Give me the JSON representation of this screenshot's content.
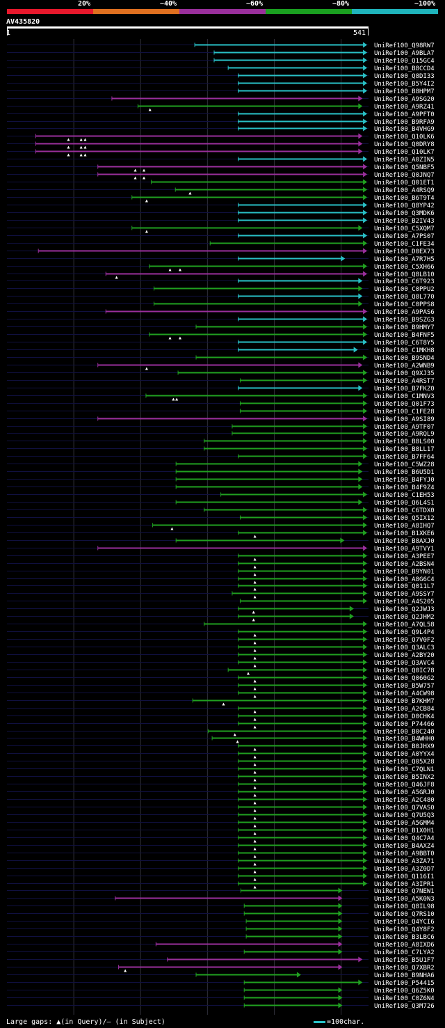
{
  "legend": [
    {
      "label": "20%",
      "color": "#e8182c"
    },
    {
      "label": "~40%",
      "color": "#e07020"
    },
    {
      "label": "~60%",
      "color": "#9a2f9c"
    },
    {
      "label": "~80%",
      "color": "#1aa020"
    },
    {
      "label": "~100%",
      "color": "#1fb4bc"
    }
  ],
  "query": {
    "id": "AV435820",
    "start": "1",
    "end": "541"
  },
  "footer": {
    "gaps_text": "Large gaps: ▲(in Query)/– (in Subject)",
    "scale_text": "=100char."
  },
  "chart_data": {
    "type": "alignment",
    "query_length": 541,
    "hits": [
      {
        "name": "UniRef100_Q98RW7",
        "start": 282,
        "end": 540,
        "identity": "high"
      },
      {
        "name": "UniRef100_A9BLA7",
        "start": 311,
        "end": 540,
        "identity": "high"
      },
      {
        "name": "UniRef100_Q15GC4",
        "start": 311,
        "end": 540,
        "identity": "high"
      },
      {
        "name": "UniRef100_B8CCD4",
        "start": 332,
        "end": 540,
        "identity": "high"
      },
      {
        "name": "UniRef100_Q8DI33",
        "start": 347,
        "end": 540,
        "identity": "high"
      },
      {
        "name": "UniRef100_B5Y4I2",
        "start": 347,
        "end": 540,
        "identity": "high"
      },
      {
        "name": "UniRef100_B8HPM7",
        "start": 347,
        "end": 540,
        "identity": "high"
      },
      {
        "name": "UniRef100_A9SG20",
        "start": 158,
        "end": 533,
        "identity": "mid"
      },
      {
        "name": "UniRef100_A9RZ41",
        "start": 197,
        "end": 533,
        "identity": "good",
        "gaps": [
          215
        ]
      },
      {
        "name": "UniRef100_A9PFT0",
        "start": 347,
        "end": 540,
        "identity": "high"
      },
      {
        "name": "UniRef100_B9RFA9",
        "start": 347,
        "end": 540,
        "identity": "high"
      },
      {
        "name": "UniRef100_B4VHG9",
        "start": 347,
        "end": 540,
        "identity": "high"
      },
      {
        "name": "UniRef100_Q10LK6",
        "start": 44,
        "end": 533,
        "identity": "mid",
        "gaps": [
          93,
          112,
          118
        ]
      },
      {
        "name": "UniRef100_Q0DRY8",
        "start": 44,
        "end": 533,
        "identity": "mid",
        "gaps": [
          93,
          112,
          118
        ]
      },
      {
        "name": "UniRef100_Q10LK7",
        "start": 44,
        "end": 533,
        "identity": "mid",
        "gaps": [
          93,
          112,
          118
        ]
      },
      {
        "name": "UniRef100_A0ZIN5",
        "start": 347,
        "end": 540,
        "identity": "high"
      },
      {
        "name": "UniRef100_Q5NBF5",
        "start": 137,
        "end": 540,
        "identity": "mid",
        "gaps": [
          193,
          206
        ]
      },
      {
        "name": "UniRef100_Q0JNQ7",
        "start": 137,
        "end": 540,
        "identity": "mid",
        "gaps": [
          193,
          206
        ]
      },
      {
        "name": "UniRef100_Q01ET1",
        "start": 217,
        "end": 540,
        "identity": "good"
      },
      {
        "name": "UniRef100_A4RSQ9",
        "start": 253,
        "end": 540,
        "identity": "good",
        "gaps": [
          275
        ]
      },
      {
        "name": "UniRef100_B6T9T4",
        "start": 188,
        "end": 540,
        "identity": "good",
        "gaps": [
          210
        ]
      },
      {
        "name": "UniRef100_Q8YP42",
        "start": 347,
        "end": 540,
        "identity": "high"
      },
      {
        "name": "UniRef100_Q3MDK6",
        "start": 347,
        "end": 540,
        "identity": "high"
      },
      {
        "name": "UniRef100_B2IV43",
        "start": 347,
        "end": 540,
        "identity": "high"
      },
      {
        "name": "UniRef100_C5XQM7",
        "start": 188,
        "end": 533,
        "identity": "good",
        "gaps": [
          210
        ]
      },
      {
        "name": "UniRef100_A7PS07",
        "start": 347,
        "end": 540,
        "identity": "high"
      },
      {
        "name": "UniRef100_C1FE34",
        "start": 305,
        "end": 540,
        "identity": "good"
      },
      {
        "name": "UniRef100_D0EX73",
        "start": 48,
        "end": 540,
        "identity": "mid"
      },
      {
        "name": "UniRef100_A7R7H5",
        "start": 347,
        "end": 507,
        "identity": "high"
      },
      {
        "name": "UniRef100_C5XH66",
        "start": 214,
        "end": 540,
        "identity": "good",
        "gaps": [
          245,
          260
        ]
      },
      {
        "name": "UniRef100_Q8LB10",
        "start": 149,
        "end": 540,
        "identity": "mid",
        "gaps": [
          165
        ]
      },
      {
        "name": "UniRef100_C6T923",
        "start": 347,
        "end": 533,
        "identity": "high"
      },
      {
        "name": "UniRef100_C0PPU2",
        "start": 221,
        "end": 533,
        "identity": "good"
      },
      {
        "name": "UniRef100_Q8L770",
        "start": 347,
        "end": 533,
        "identity": "high"
      },
      {
        "name": "UniRef100_C0PPS8",
        "start": 221,
        "end": 533,
        "identity": "good"
      },
      {
        "name": "UniRef100_A9PAS6",
        "start": 149,
        "end": 540,
        "identity": "mid"
      },
      {
        "name": "UniRef100_B9SZG3",
        "start": 347,
        "end": 540,
        "identity": "high"
      },
      {
        "name": "UniRef100_B9HMY7",
        "start": 284,
        "end": 540,
        "identity": "good"
      },
      {
        "name": "UniRef100_B4FNF5",
        "start": 214,
        "end": 540,
        "identity": "good",
        "gaps": [
          245,
          260
        ]
      },
      {
        "name": "UniRef100_C6T8Y5",
        "start": 347,
        "end": 540,
        "identity": "high"
      },
      {
        "name": "UniRef100_C1MKH8",
        "start": 347,
        "end": 526,
        "identity": "high"
      },
      {
        "name": "UniRef100_B9SND4",
        "start": 284,
        "end": 540,
        "identity": "good"
      },
      {
        "name": "UniRef100_A2WNB9",
        "start": 137,
        "end": 533,
        "identity": "mid",
        "gaps": [
          210
        ]
      },
      {
        "name": "UniRef100_Q9XJ35",
        "start": 257,
        "end": 540,
        "identity": "good"
      },
      {
        "name": "UniRef100_A4RST7",
        "start": 350,
        "end": 540,
        "identity": "good"
      },
      {
        "name": "UniRef100_B7FKZ0",
        "start": 347,
        "end": 533,
        "identity": "high"
      },
      {
        "name": "UniRef100_C1MNV3",
        "start": 209,
        "end": 540,
        "identity": "good",
        "gaps": [
          250,
          255
        ]
      },
      {
        "name": "UniRef100_Q01F73",
        "start": 350,
        "end": 540,
        "identity": "good"
      },
      {
        "name": "UniRef100_C1FE28",
        "start": 350,
        "end": 540,
        "identity": "good"
      },
      {
        "name": "UniRef100_A9SI89",
        "start": 137,
        "end": 540,
        "identity": "mid"
      },
      {
        "name": "UniRef100_A9TF07",
        "start": 338,
        "end": 540,
        "identity": "good"
      },
      {
        "name": "UniRef100_A9RQL9",
        "start": 338,
        "end": 540,
        "identity": "good"
      },
      {
        "name": "UniRef100_B8LS00",
        "start": 296,
        "end": 540,
        "identity": "good"
      },
      {
        "name": "UniRef100_B8LL17",
        "start": 296,
        "end": 540,
        "identity": "good"
      },
      {
        "name": "UniRef100_B7FF64",
        "start": 347,
        "end": 540,
        "identity": "good"
      },
      {
        "name": "UniRef100_C5WZ28",
        "start": 254,
        "end": 533,
        "identity": "good"
      },
      {
        "name": "UniRef100_B6U5D1",
        "start": 254,
        "end": 533,
        "identity": "good"
      },
      {
        "name": "UniRef100_B4FYJ0",
        "start": 254,
        "end": 533,
        "identity": "good"
      },
      {
        "name": "UniRef100_B4F9Z4",
        "start": 254,
        "end": 533,
        "identity": "good"
      },
      {
        "name": "UniRef100_C1EH53",
        "start": 321,
        "end": 540,
        "identity": "good"
      },
      {
        "name": "UniRef100_Q6L4S1",
        "start": 254,
        "end": 533,
        "identity": "good"
      },
      {
        "name": "UniRef100_C6TDX0",
        "start": 296,
        "end": 540,
        "identity": "good"
      },
      {
        "name": "UniRef100_Q5IX12",
        "start": 350,
        "end": 540,
        "identity": "good"
      },
      {
        "name": "UniRef100_A8IHQ7",
        "start": 219,
        "end": 540,
        "identity": "good",
        "gaps": [
          248
        ]
      },
      {
        "name": "UniRef100_B1XKE6",
        "start": 347,
        "end": 540,
        "identity": "good",
        "gaps": [
          372
        ]
      },
      {
        "name": "UniRef100_B8AXJ0",
        "start": 254,
        "end": 506,
        "identity": "good"
      },
      {
        "name": "UniRef100_A9TVY1",
        "start": 137,
        "end": 540,
        "identity": "mid"
      },
      {
        "name": "UniRef100_A3PEE7",
        "start": 347,
        "end": 540,
        "identity": "good",
        "gaps": [
          372
        ]
      },
      {
        "name": "UniRef100_A2BSN4",
        "start": 347,
        "end": 540,
        "identity": "good",
        "gaps": [
          372
        ]
      },
      {
        "name": "UniRef100_B9YN01",
        "start": 347,
        "end": 540,
        "identity": "good",
        "gaps": [
          372
        ]
      },
      {
        "name": "UniRef100_A8G6C4",
        "start": 347,
        "end": 540,
        "identity": "good",
        "gaps": [
          372
        ]
      },
      {
        "name": "UniRef100_Q011L7",
        "start": 347,
        "end": 540,
        "identity": "good",
        "gaps": [
          372
        ]
      },
      {
        "name": "UniRef100_A9SSY7",
        "start": 338,
        "end": 540,
        "identity": "good",
        "gaps": [
          372
        ]
      },
      {
        "name": "UniRef100_A4S205",
        "start": 350,
        "end": 540,
        "identity": "good"
      },
      {
        "name": "UniRef100_Q2JWJ3",
        "start": 347,
        "end": 520,
        "identity": "good",
        "gaps": [
          370
        ]
      },
      {
        "name": "UniRef100_Q2JHM2",
        "start": 347,
        "end": 520,
        "identity": "good",
        "gaps": [
          370
        ]
      },
      {
        "name": "UniRef100_A7QL58",
        "start": 296,
        "end": 540,
        "identity": "good"
      },
      {
        "name": "UniRef100_Q9L4P4",
        "start": 347,
        "end": 540,
        "identity": "good",
        "gaps": [
          372
        ]
      },
      {
        "name": "UniRef100_Q7V0F2",
        "start": 347,
        "end": 540,
        "identity": "good",
        "gaps": [
          372
        ]
      },
      {
        "name": "UniRef100_Q3ALC3",
        "start": 347,
        "end": 540,
        "identity": "good",
        "gaps": [
          372
        ]
      },
      {
        "name": "UniRef100_A2BY20",
        "start": 347,
        "end": 540,
        "identity": "good",
        "gaps": [
          372
        ]
      },
      {
        "name": "UniRef100_Q3AVC4",
        "start": 347,
        "end": 540,
        "identity": "good",
        "gaps": [
          372
        ]
      },
      {
        "name": "UniRef100_Q0IC78",
        "start": 332,
        "end": 540,
        "identity": "good",
        "gaps": [
          362
        ]
      },
      {
        "name": "UniRef100_Q060G2",
        "start": 347,
        "end": 540,
        "identity": "good",
        "gaps": [
          372
        ]
      },
      {
        "name": "UniRef100_B5W757",
        "start": 347,
        "end": 540,
        "identity": "good",
        "gaps": [
          372
        ]
      },
      {
        "name": "UniRef100_A4CW98",
        "start": 347,
        "end": 540,
        "identity": "good",
        "gaps": [
          372
        ]
      },
      {
        "name": "UniRef100_B7KHM7",
        "start": 279,
        "end": 540,
        "identity": "good",
        "gaps": [
          325
        ]
      },
      {
        "name": "UniRef100_A2CB84",
        "start": 347,
        "end": 540,
        "identity": "good",
        "gaps": [
          372
        ]
      },
      {
        "name": "UniRef100_D0CHK4",
        "start": 347,
        "end": 540,
        "identity": "good",
        "gaps": [
          372
        ]
      },
      {
        "name": "UniRef100_P74466",
        "start": 347,
        "end": 540,
        "identity": "good",
        "gaps": [
          372
        ]
      },
      {
        "name": "UniRef100_B0C240",
        "start": 302,
        "end": 540,
        "identity": "good",
        "gaps": [
          342
        ]
      },
      {
        "name": "UniRef100_B4WHH0",
        "start": 308,
        "end": 540,
        "identity": "good",
        "gaps": [
          346
        ]
      },
      {
        "name": "UniRef100_B0JHX9",
        "start": 347,
        "end": 540,
        "identity": "good",
        "gaps": [
          372
        ]
      },
      {
        "name": "UniRef100_A0YYX4",
        "start": 347,
        "end": 540,
        "identity": "good",
        "gaps": [
          372
        ]
      },
      {
        "name": "UniRef100_Q05X28",
        "start": 347,
        "end": 540,
        "identity": "good",
        "gaps": [
          372
        ]
      },
      {
        "name": "UniRef100_C7QLN1",
        "start": 347,
        "end": 540,
        "identity": "good",
        "gaps": [
          372
        ]
      },
      {
        "name": "UniRef100_B5INX2",
        "start": 347,
        "end": 540,
        "identity": "good",
        "gaps": [
          372
        ]
      },
      {
        "name": "UniRef100_Q46JF8",
        "start": 347,
        "end": 540,
        "identity": "good",
        "gaps": [
          372
        ]
      },
      {
        "name": "UniRef100_A5GRJ0",
        "start": 347,
        "end": 540,
        "identity": "good",
        "gaps": [
          372
        ]
      },
      {
        "name": "UniRef100_A2C480",
        "start": 347,
        "end": 540,
        "identity": "good",
        "gaps": [
          372
        ]
      },
      {
        "name": "UniRef100_Q7VAS0",
        "start": 347,
        "end": 540,
        "identity": "good",
        "gaps": [
          372
        ]
      },
      {
        "name": "UniRef100_Q7U5Q3",
        "start": 347,
        "end": 540,
        "identity": "good",
        "gaps": [
          372
        ]
      },
      {
        "name": "UniRef100_A5GMM4",
        "start": 347,
        "end": 540,
        "identity": "good",
        "gaps": [
          372
        ]
      },
      {
        "name": "UniRef100_B1X0H1",
        "start": 347,
        "end": 540,
        "identity": "good",
        "gaps": [
          372
        ]
      },
      {
        "name": "UniRef100_Q4C7A4",
        "start": 347,
        "end": 540,
        "identity": "good",
        "gaps": [
          372
        ]
      },
      {
        "name": "UniRef100_B4AXZ4",
        "start": 347,
        "end": 540,
        "identity": "good",
        "gaps": [
          372
        ]
      },
      {
        "name": "UniRef100_A9BBT0",
        "start": 347,
        "end": 540,
        "identity": "good",
        "gaps": [
          372
        ]
      },
      {
        "name": "UniRef100_A3ZA71",
        "start": 347,
        "end": 540,
        "identity": "good",
        "gaps": [
          372
        ]
      },
      {
        "name": "UniRef100_A3Z0D7",
        "start": 347,
        "end": 540,
        "identity": "good",
        "gaps": [
          372
        ]
      },
      {
        "name": "UniRef100_Q116I1",
        "start": 347,
        "end": 540,
        "identity": "good",
        "gaps": [
          372
        ]
      },
      {
        "name": "UniRef100_A3IPR1",
        "start": 347,
        "end": 540,
        "identity": "good",
        "gaps": [
          372
        ]
      },
      {
        "name": "UniRef100_Q7NEW1",
        "start": 351,
        "end": 503,
        "identity": "good"
      },
      {
        "name": "UniRef100_A5K0N3",
        "start": 163,
        "end": 503,
        "identity": "mid"
      },
      {
        "name": "UniRef100_Q8IL98",
        "start": 356,
        "end": 503,
        "identity": "good"
      },
      {
        "name": "UniRef100_Q7RS10",
        "start": 356,
        "end": 503,
        "identity": "good"
      },
      {
        "name": "UniRef100_Q4YCI6",
        "start": 359,
        "end": 503,
        "identity": "good"
      },
      {
        "name": "UniRef100_Q4Y8F2",
        "start": 359,
        "end": 503,
        "identity": "good"
      },
      {
        "name": "UniRef100_B3LBC6",
        "start": 359,
        "end": 503,
        "identity": "good"
      },
      {
        "name": "UniRef100_A8IXD6",
        "start": 224,
        "end": 503,
        "identity": "mid"
      },
      {
        "name": "UniRef100_C7LYA2",
        "start": 356,
        "end": 503,
        "identity": "good"
      },
      {
        "name": "UniRef100_B5U1F7",
        "start": 241,
        "end": 533,
        "identity": "mid"
      },
      {
        "name": "UniRef100_Q7XBR2",
        "start": 168,
        "end": 503,
        "identity": "mid",
        "gaps": [
          178
        ]
      },
      {
        "name": "UniRef100_B9NHA6",
        "start": 284,
        "end": 441,
        "identity": "good"
      },
      {
        "name": "UniRef100_P54415",
        "start": 356,
        "end": 533,
        "identity": "good"
      },
      {
        "name": "UniRef100_Q6Z5K0",
        "start": 356,
        "end": 503,
        "identity": "good"
      },
      {
        "name": "UniRef100_C0Z6N4",
        "start": 356,
        "end": 503,
        "identity": "good"
      },
      {
        "name": "UniRef100_Q3M726",
        "start": 356,
        "end": 503,
        "identity": "good"
      }
    ]
  },
  "colors": {
    "high": "#29c0c6",
    "mid": "#9a2f9c",
    "good": "#20a020",
    "trace": "#101040",
    "grid": "#30303a"
  }
}
